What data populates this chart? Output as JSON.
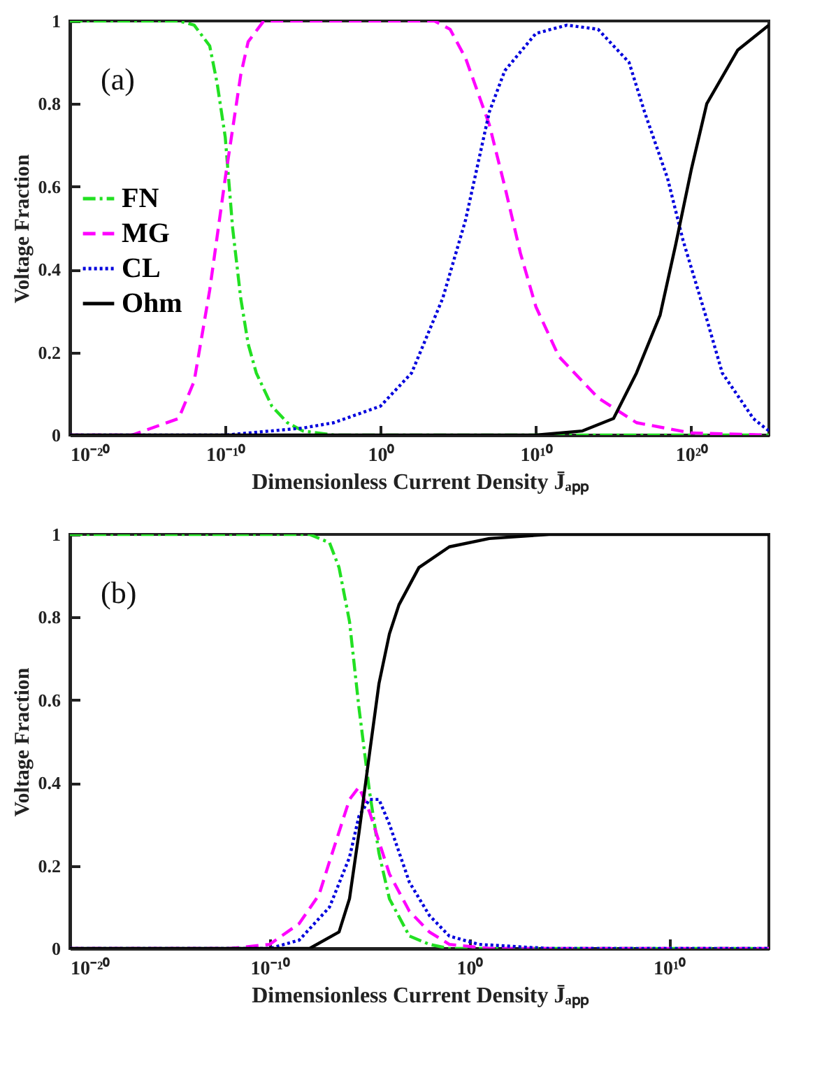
{
  "chart_data": [
    {
      "type": "line",
      "log": "x",
      "xlabel": "Dimensionless Current Density J̄ₐₚₚ",
      "ylabel": "Voltage Fraction",
      "annotations": [
        "(a)"
      ],
      "legend": "left",
      "xlim": [
        1e-20,
        1e+25
      ],
      "xticks": [
        {
          "value": 1e-20,
          "label": "10⁻²⁰"
        },
        {
          "value": 1e-10,
          "label": "10⁻¹⁰"
        },
        {
          "value": 1,
          "label": "10⁰"
        },
        {
          "value": 10000000000.0,
          "label": "10¹⁰"
        },
        {
          "value": 1e+20,
          "label": "10²⁰"
        }
      ],
      "ylim": [
        0,
        1
      ],
      "yticks": [
        0,
        0.2,
        0.4,
        0.6,
        0.8,
        1
      ],
      "series": [
        {
          "name": "FN",
          "color": "#22e022",
          "line_style": "dashdot",
          "x": [
            1e-20,
            1e-13,
            1e-12,
            1e-11,
            3e-11,
            1e-10,
            3e-10,
            1e-09,
            3e-09,
            1e-08,
            1e-07,
            1e-06,
            1e-05,
            0.001,
            1e+25
          ],
          "values": [
            1,
            1,
            0.99,
            0.94,
            0.85,
            0.72,
            0.5,
            0.33,
            0.22,
            0.15,
            0.07,
            0.03,
            0.01,
            0,
            0
          ]
        },
        {
          "name": "MG",
          "color": "#ff00ff",
          "line_style": "dashed",
          "x": [
            1e-20,
            1e-16,
            1e-13,
            1e-12,
            1e-11,
            1e-10,
            1e-09,
            3e-09,
            3e-08,
            3000.0,
            30000.0,
            300000.0,
            10000000.0,
            100000000.0,
            1000000000.0,
            10000000000.0,
            300000000000.0,
            100000000000000.0,
            3e+16,
            1e+20,
            1e+25
          ],
          "values": [
            0,
            0,
            0.04,
            0.13,
            0.35,
            0.62,
            0.87,
            0.95,
            1,
            1,
            0.98,
            0.91,
            0.75,
            0.6,
            0.44,
            0.31,
            0.19,
            0.09,
            0.03,
            0.005,
            0
          ]
        },
        {
          "name": "CL",
          "color": "#0000dd",
          "line_style": "dotted",
          "x": [
            1e-20,
            1e-10,
            1e-05,
            0.001,
            1,
            100.0,
            10000.0,
            300000.0,
            10000000.0,
            100000000.0,
            10000000000.0,
            1000000000000.0,
            100000000000000.0,
            1e+16,
            1e+17,
            3e+18,
            3e+19,
            1e+21,
            1e+22,
            1e+24,
            1e+25
          ],
          "values": [
            0,
            0,
            0.017,
            0.03,
            0.07,
            0.15,
            0.33,
            0.52,
            0.78,
            0.88,
            0.97,
            0.99,
            0.98,
            0.9,
            0.78,
            0.62,
            0.47,
            0.28,
            0.15,
            0.04,
            0.01
          ]
        },
        {
          "name": "Ohm",
          "color": "#000000",
          "line_style": "solid",
          "x": [
            1e-20,
            10000000000.0,
            10000000000000.0,
            1000000000000000.0,
            3e+16,
            1e+18,
            1e+19,
            1e+20,
            1e+21,
            1e+23,
            1e+25
          ],
          "values": [
            0,
            0,
            0.01,
            0.04,
            0.15,
            0.29,
            0.46,
            0.64,
            0.8,
            0.93,
            0.99
          ]
        }
      ]
    },
    {
      "type": "line",
      "log": "x",
      "xlabel": "Dimensionless Current Density J̄ₐₚₚ",
      "ylabel": "Voltage Fraction",
      "annotations": [
        "(b)"
      ],
      "legend": "left",
      "xlim": [
        1e-20,
        1000000000000000.0
      ],
      "xticks": [
        {
          "value": 1e-20,
          "label": "10⁻²⁰"
        },
        {
          "value": 1e-10,
          "label": "10⁻¹⁰"
        },
        {
          "value": 1,
          "label": "10⁰"
        },
        {
          "value": 10000000000.0,
          "label": "10¹⁰"
        }
      ],
      "ylim": [
        0,
        1
      ],
      "yticks": [
        0,
        0.2,
        0.4,
        0.6,
        0.8,
        1
      ],
      "series": [
        {
          "name": "FN",
          "color": "#22e022",
          "line_style": "dashdot",
          "x": [
            1e-20,
            1e-08,
            1e-07,
            3e-07,
            1e-06,
            3e-06,
            1e-05,
            3e-05,
            0.0001,
            0.001,
            0.01,
            0.1,
            1000000000000000.0
          ],
          "values": [
            1,
            1,
            0.98,
            0.92,
            0.79,
            0.58,
            0.38,
            0.23,
            0.12,
            0.03,
            0.01,
            0,
            0
          ]
        },
        {
          "name": "MG",
          "color": "#ff00ff",
          "line_style": "dashed",
          "x": [
            1e-20,
            1e-12,
            1e-10,
            3e-09,
            3e-08,
            1e-07,
            1e-06,
            3e-06,
            1e-05,
            0.0001,
            0.001,
            0.01,
            0.1,
            10,
            1000000000000000.0
          ],
          "values": [
            0,
            0,
            0.01,
            0.06,
            0.13,
            0.21,
            0.36,
            0.39,
            0.33,
            0.18,
            0.09,
            0.04,
            0.01,
            0,
            0
          ]
        },
        {
          "name": "CL",
          "color": "#0000dd",
          "line_style": "dotted",
          "x": [
            1e-20,
            1e-10,
            3e-09,
            1e-07,
            1e-06,
            3e-06,
            1e-05,
            3e-05,
            0.0001,
            0.001,
            0.01,
            0.1,
            3,
            10000.0,
            1000000000000000.0
          ],
          "values": [
            0,
            0,
            0.02,
            0.1,
            0.22,
            0.32,
            0.36,
            0.36,
            0.3,
            0.16,
            0.08,
            0.03,
            0.01,
            0,
            0
          ]
        },
        {
          "name": "Ohm",
          "color": "#000000",
          "line_style": "solid",
          "x": [
            1e-20,
            1e-08,
            3e-07,
            1e-06,
            3e-06,
            1e-05,
            3e-05,
            0.0001,
            0.0003,
            0.003,
            0.1,
            10,
            10000.0,
            1000000000000000.0
          ],
          "values": [
            0,
            0,
            0.04,
            0.12,
            0.28,
            0.47,
            0.64,
            0.76,
            0.83,
            0.92,
            0.97,
            0.99,
            1,
            1
          ]
        }
      ]
    }
  ]
}
